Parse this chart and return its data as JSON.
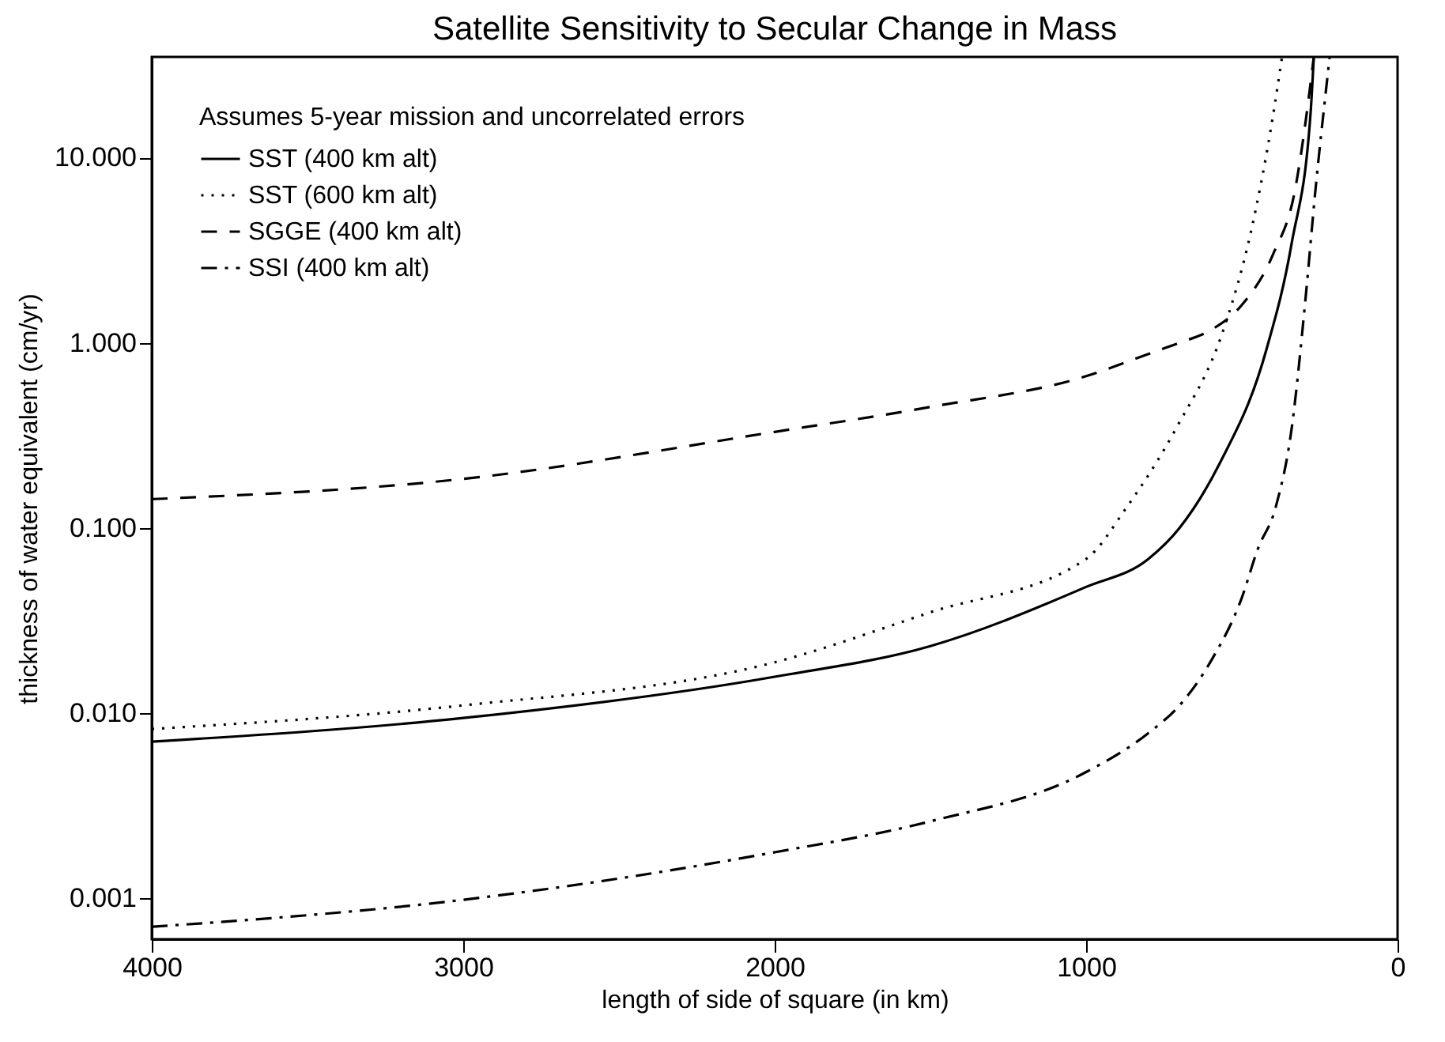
{
  "chart_data": {
    "type": "line",
    "title": "Satellite Sensitivity to Secular Change in Mass",
    "xlabel": "length of side of square (in km)",
    "ylabel": "thickness of water equivalent (cm/yr)",
    "legend_title": "Assumes 5-year mission and uncorrelated errors",
    "legend": "top left",
    "grid": false,
    "log": "y",
    "marker": "none",
    "xlim": [
      4000,
      0
    ],
    "xticks": [
      4000,
      3000,
      2000,
      1000,
      0
    ],
    "ylim": [
      0.0006,
      35
    ],
    "yticks": [
      {
        "value": 0.001,
        "label": "0.001"
      },
      {
        "value": 0.01,
        "label": "0.010"
      },
      {
        "value": 0.1,
        "label": "0.100"
      },
      {
        "value": 1,
        "label": "1.000"
      },
      {
        "value": 10,
        "label": "10.000"
      }
    ],
    "series": [
      {
        "name": "SST (400 km alt)",
        "color": "#000000",
        "line_style": "solid",
        "x": [
          4000,
          3000,
          2000,
          1500,
          1000,
          800,
          700,
          573,
          421,
          340,
          279,
          269
        ],
        "values": [
          0.007,
          0.0094,
          0.0157,
          0.023,
          0.048,
          0.068,
          0.1,
          0.22,
          0.92,
          3.45,
          17.7,
          35
        ]
      },
      {
        "name": "SST (600 km alt)",
        "color": "#000000",
        "line_style": "dotted",
        "x": [
          4000,
          3000,
          2000,
          1500,
          1000,
          870,
          711,
          558,
          472,
          406,
          371
        ],
        "values": [
          0.0082,
          0.011,
          0.0188,
          0.035,
          0.068,
          0.129,
          0.345,
          1.19,
          3.9,
          14.6,
          35
        ]
      },
      {
        "name": "SGGE (400 km alt)",
        "color": "#000000",
        "line_style": "dashed",
        "x": [
          4000,
          3000,
          2000,
          1500,
          1000,
          800,
          700,
          600,
          500,
          400,
          330,
          280,
          269
        ],
        "values": [
          0.143,
          0.184,
          0.33,
          0.45,
          0.66,
          0.87,
          1.0,
          1.17,
          1.6,
          3.0,
          6.6,
          24.7,
          35
        ]
      },
      {
        "name": "SSI (400 km alt)",
        "color": "#000000",
        "line_style": "dashdot",
        "x": [
          4000,
          3000,
          2000,
          1500,
          1000,
          800,
          700,
          600,
          500,
          450,
          391,
          340,
          295,
          264,
          228,
          218
        ],
        "values": [
          0.0007,
          0.00098,
          0.00177,
          0.0026,
          0.0048,
          0.0078,
          0.011,
          0.019,
          0.042,
          0.076,
          0.13,
          0.345,
          1.77,
          6.6,
          24.7,
          35
        ]
      }
    ]
  }
}
